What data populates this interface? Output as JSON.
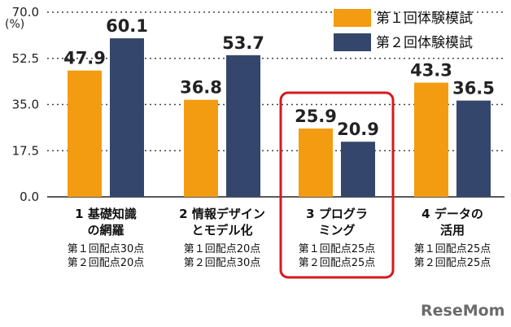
{
  "chart_data": {
    "type": "bar",
    "unit_label": "(%)",
    "ylim": [
      0,
      70
    ],
    "yticks": [
      "70.0",
      "52.5",
      "35.0",
      "17.5",
      "0.0"
    ],
    "grid": true,
    "legend_position": "top-right",
    "categories": [
      {
        "label_lines": [
          "1  基礎知識",
          "の網羅"
        ],
        "notes": [
          "第１回配点30点",
          "第２回配点20点"
        ]
      },
      {
        "label_lines": [
          "2  情報デザイン",
          "とモデル化"
        ],
        "notes": [
          "第１回配点20点",
          "第２回配点30点"
        ]
      },
      {
        "label_lines": [
          "3  プログラ",
          "ミング"
        ],
        "notes": [
          "第１回配点25点",
          "第２回配点25点"
        ],
        "highlighted": true
      },
      {
        "label_lines": [
          "4  データの",
          "活用"
        ],
        "notes": [
          "第１回配点25点",
          "第２回配点25点"
        ]
      }
    ],
    "series": [
      {
        "name": "第１回体験模試",
        "color": "#f39c12",
        "values": [
          47.9,
          36.8,
          25.9,
          43.3
        ],
        "labels": [
          "47.9",
          "36.8",
          "25.9",
          "43.3"
        ]
      },
      {
        "name": "第２回体験模試",
        "color": "#34466b",
        "values": [
          60.1,
          53.7,
          20.9,
          36.5
        ],
        "labels": [
          "60.1",
          "53.7",
          "20.9",
          "36.5"
        ]
      }
    ],
    "highlight_color": "#d7191f"
  },
  "brand": "ReseMom"
}
